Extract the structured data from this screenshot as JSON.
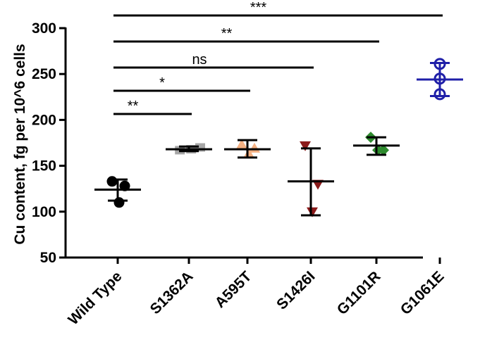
{
  "chart_data": {
    "type": "scatter",
    "ylabel": "Cu content, fg per 10^6 cells",
    "xlabel": "",
    "ylim": [
      50,
      300
    ],
    "yticks": [
      50,
      100,
      150,
      200,
      250,
      300
    ],
    "ytick_labels": [
      "50",
      "100",
      "150",
      "200",
      "250",
      "300"
    ],
    "grid": false,
    "categories": [
      "Wild Type",
      "S1362A",
      "A595T",
      "S1426I",
      "G1101R",
      "G1061E"
    ],
    "series": [
      {
        "category": "Wild Type",
        "marker": "circle-filled",
        "color": "#000000",
        "error_color": "#000000",
        "points": [
          133,
          128,
          110
        ],
        "mean": 124,
        "error": [
          112,
          135
        ]
      },
      {
        "category": "S1362A",
        "marker": "square-filled",
        "color": "#a6a6a6",
        "error_color": "#000000",
        "points": [
          167,
          170,
          168
        ],
        "mean": 168,
        "error": [
          166,
          171
        ]
      },
      {
        "category": "A595T",
        "marker": "triangle-filled",
        "color": "#f4b183",
        "error_color": "#000000",
        "points": [
          173,
          169,
          163
        ],
        "mean": 168,
        "error": [
          159,
          178
        ]
      },
      {
        "category": "S1426I",
        "marker": "triangle-down-filled",
        "color": "#8b1a1a",
        "error_color": "#000000",
        "points": [
          172,
          130,
          100
        ],
        "mean": 133,
        "error": [
          96,
          169
        ]
      },
      {
        "category": "G1101R",
        "marker": "diamond-filled",
        "color": "#2e8b2e",
        "error_color": "#000000",
        "points": [
          181,
          167,
          167
        ],
        "mean": 172,
        "error": [
          162,
          181
        ]
      },
      {
        "category": "G1061E",
        "marker": "circle-open",
        "color": "#1f1fa8",
        "error_color": "#1f1fa8",
        "points": [
          261,
          245,
          228
        ],
        "mean": 244,
        "error": [
          226,
          262
        ]
      }
    ],
    "significance": [
      {
        "from": "Wild Type",
        "to": "S1362A",
        "label": "**"
      },
      {
        "from": "Wild Type",
        "to": "A595T",
        "label": "*"
      },
      {
        "from": "Wild Type",
        "to": "S1426I",
        "label": "ns"
      },
      {
        "from": "Wild Type",
        "to": "G1101R",
        "label": "**"
      },
      {
        "from": "Wild Type",
        "to": "G1061E",
        "label": "***"
      }
    ]
  }
}
